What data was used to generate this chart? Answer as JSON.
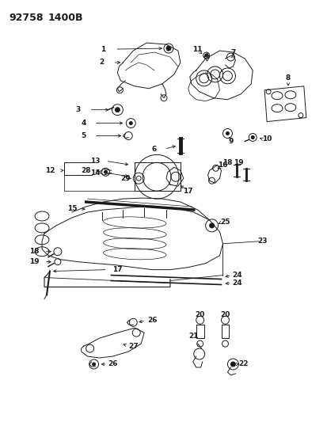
{
  "title_part1": "92758",
  "title_part2": "1400B",
  "bg_color": "#ffffff",
  "line_color": "#1a1a1a",
  "fig_width": 4.14,
  "fig_height": 5.33,
  "dpi": 100
}
